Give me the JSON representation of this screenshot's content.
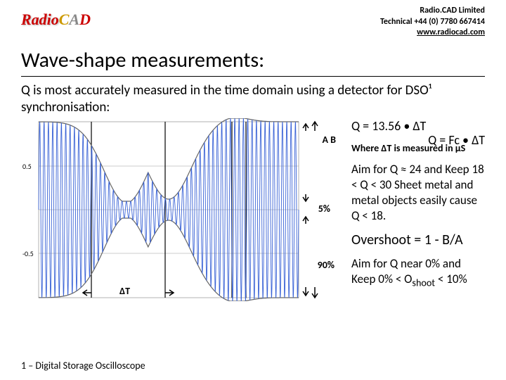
{
  "header": {
    "logo_radio": "Radio",
    "logo_c": "C",
    "logo_a": "A",
    "logo_d": "D",
    "company": "Radio.CAD Limited",
    "phone": "Technical +44 (0) 7780 667414",
    "url": "www.radiocad.com"
  },
  "title": "Wave-shape measurements:",
  "body": "Q is most accurately measured in the time domain using a detector for DSO¹ synchronisation:",
  "formula_main": "Q = Fc • ΔT",
  "chart": {
    "y_upper": "0.5",
    "y_lower": "-0.5",
    "label_AB": "A B",
    "label_5pct": "5%",
    "label_90pct": "90%",
    "label_dT": "ΔT",
    "wave_color": "#3a63d6",
    "envelope_color": "#666666",
    "axis_color": "#666666",
    "grid_color": "#999999",
    "cursor_color": "#000000"
  },
  "side": {
    "eq2": "Q = 13.56 • ΔT",
    "where": "Where ΔT is measured in μS",
    "aim_q": "Aim for Q ≈ 24 and Keep 18 < Q < 30 Sheet metal and metal objects easily cause Q < 18.",
    "overshoot": "Overshoot = 1 - B/A",
    "aim_o": "Aim for Q near 0% and Keep 0% < O",
    "aim_o_sub": "shoot",
    "aim_o_tail": " < 10%"
  },
  "footnote": "1 – Digital Storage Oscilloscope"
}
